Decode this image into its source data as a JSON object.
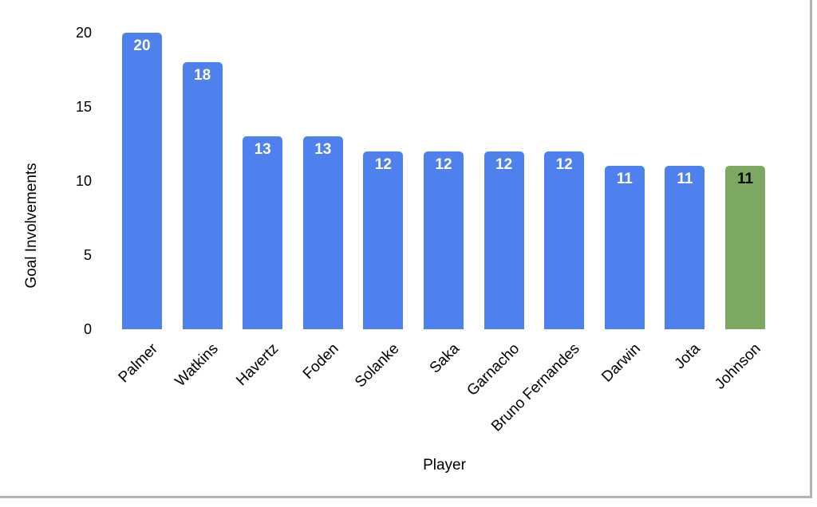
{
  "chart_data": {
    "type": "bar",
    "xlabel": "Player",
    "ylabel": "Goal Involvements",
    "categories": [
      "Palmer",
      "Watkins",
      "Havertz",
      "Foden",
      "Solanke",
      "Saka",
      "Garnacho",
      "Bruno Fernandes",
      "Darwin",
      "Jota",
      "Johnson"
    ],
    "values": [
      20,
      18,
      13,
      13,
      12,
      12,
      12,
      12,
      11,
      11,
      11
    ],
    "ylim": [
      0,
      20
    ],
    "yticks": [
      0,
      5,
      10,
      15,
      20
    ],
    "grid": false,
    "legend": "none",
    "data_labels": true,
    "bar_color": "#4E81EE",
    "bar_label_color": "#FFFFFF",
    "highlight": {
      "index": 10,
      "category": "Johnson",
      "color": "#7CA861",
      "label_color": "#000000"
    },
    "frame_border_color": "#b3b3b3"
  }
}
